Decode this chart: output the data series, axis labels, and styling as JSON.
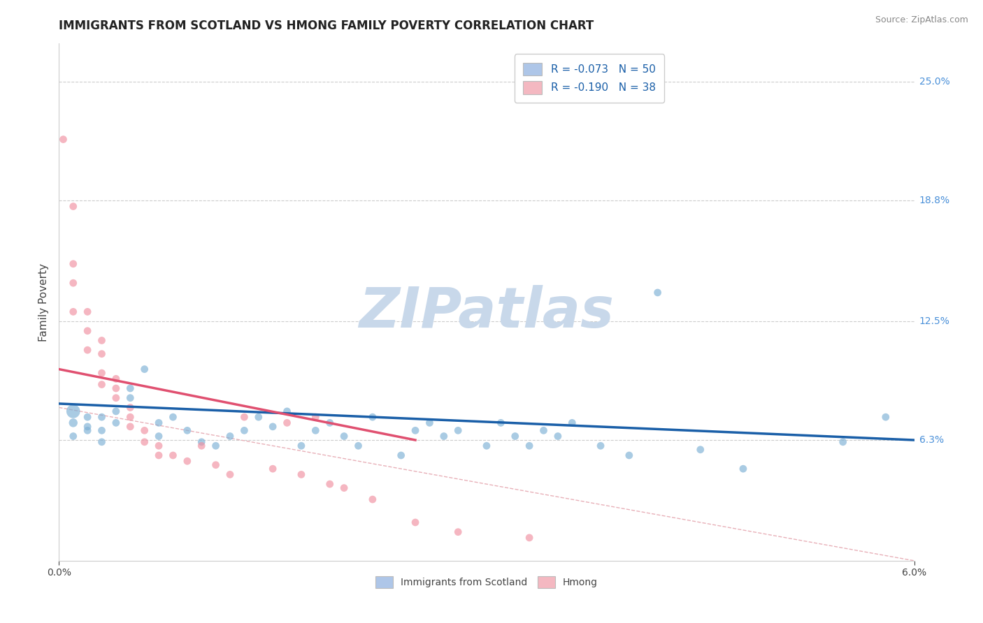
{
  "title": "IMMIGRANTS FROM SCOTLAND VS HMONG FAMILY POVERTY CORRELATION CHART",
  "source": "Source: ZipAtlas.com",
  "ylabel": "Family Poverty",
  "ylabel_right_labels": [
    "25.0%",
    "18.8%",
    "12.5%",
    "6.3%"
  ],
  "xlim": [
    0.0,
    0.06
  ],
  "ylim": [
    0.0,
    0.27
  ],
  "yticks_right": [
    0.25,
    0.188,
    0.125,
    0.063
  ],
  "xticks": [
    0.0,
    0.06
  ],
  "legend_entries": [
    {
      "label": "R = -0.073   N = 50",
      "color": "#aec6e8"
    },
    {
      "label": "R = -0.190   N = 38",
      "color": "#f4b8c1"
    }
  ],
  "legend_bottom_labels": [
    "Immigrants from Scotland",
    "Hmong"
  ],
  "scatter_blue": {
    "x": [
      0.001,
      0.001,
      0.001,
      0.002,
      0.002,
      0.002,
      0.003,
      0.003,
      0.003,
      0.004,
      0.004,
      0.005,
      0.005,
      0.006,
      0.007,
      0.007,
      0.008,
      0.009,
      0.01,
      0.011,
      0.012,
      0.013,
      0.014,
      0.015,
      0.016,
      0.017,
      0.018,
      0.019,
      0.02,
      0.021,
      0.022,
      0.024,
      0.025,
      0.026,
      0.027,
      0.028,
      0.03,
      0.031,
      0.032,
      0.033,
      0.034,
      0.035,
      0.036,
      0.038,
      0.04,
      0.042,
      0.045,
      0.048,
      0.055,
      0.058
    ],
    "y": [
      0.078,
      0.072,
      0.065,
      0.07,
      0.075,
      0.068,
      0.075,
      0.068,
      0.062,
      0.072,
      0.078,
      0.09,
      0.085,
      0.1,
      0.065,
      0.072,
      0.075,
      0.068,
      0.062,
      0.06,
      0.065,
      0.068,
      0.075,
      0.07,
      0.078,
      0.06,
      0.068,
      0.072,
      0.065,
      0.06,
      0.075,
      0.055,
      0.068,
      0.072,
      0.065,
      0.068,
      0.06,
      0.072,
      0.065,
      0.06,
      0.068,
      0.065,
      0.072,
      0.06,
      0.055,
      0.14,
      0.058,
      0.048,
      0.062,
      0.075
    ],
    "sizes": [
      200,
      80,
      60,
      60,
      60,
      60,
      60,
      60,
      60,
      60,
      60,
      60,
      60,
      60,
      60,
      60,
      60,
      60,
      60,
      60,
      60,
      60,
      60,
      60,
      60,
      60,
      60,
      60,
      60,
      60,
      60,
      60,
      60,
      60,
      60,
      60,
      60,
      60,
      60,
      60,
      60,
      60,
      60,
      60,
      60,
      60,
      60,
      60,
      60,
      60
    ]
  },
  "scatter_pink": {
    "x": [
      0.0003,
      0.001,
      0.001,
      0.001,
      0.001,
      0.002,
      0.002,
      0.002,
      0.003,
      0.003,
      0.003,
      0.003,
      0.004,
      0.004,
      0.004,
      0.005,
      0.005,
      0.005,
      0.006,
      0.006,
      0.007,
      0.007,
      0.008,
      0.009,
      0.01,
      0.011,
      0.012,
      0.013,
      0.015,
      0.016,
      0.017,
      0.018,
      0.019,
      0.02,
      0.022,
      0.025,
      0.028,
      0.033
    ],
    "y": [
      0.22,
      0.185,
      0.155,
      0.145,
      0.13,
      0.13,
      0.12,
      0.11,
      0.115,
      0.108,
      0.098,
      0.092,
      0.09,
      0.085,
      0.095,
      0.08,
      0.075,
      0.07,
      0.068,
      0.062,
      0.06,
      0.055,
      0.055,
      0.052,
      0.06,
      0.05,
      0.045,
      0.075,
      0.048,
      0.072,
      0.045,
      0.075,
      0.04,
      0.038,
      0.032,
      0.02,
      0.015,
      0.012
    ],
    "sizes": [
      60,
      60,
      60,
      60,
      60,
      60,
      60,
      60,
      60,
      60,
      60,
      60,
      60,
      60,
      60,
      60,
      60,
      60,
      60,
      60,
      60,
      60,
      60,
      60,
      60,
      60,
      60,
      60,
      60,
      60,
      60,
      60,
      60,
      60,
      60,
      60,
      60,
      60
    ]
  },
  "blue_color": "#7bafd4",
  "pink_color": "#f090a0",
  "blue_line_color": "#1a5fa8",
  "pink_line_color": "#e05070",
  "blue_legend_color": "#aec6e8",
  "pink_legend_color": "#f4b8c1",
  "watermark": "ZIPatlas",
  "watermark_color": "#c8d8ea",
  "grid_color": "#cccccc",
  "right_label_color": "#4a90d9",
  "background_color": "#ffffff",
  "blue_line_x": [
    0.0,
    0.06
  ],
  "blue_line_y": [
    0.082,
    0.063
  ],
  "pink_line_x": [
    0.0,
    0.025
  ],
  "pink_line_y": [
    0.1,
    0.063
  ],
  "dash_line_x": [
    0.0,
    0.06
  ],
  "dash_line_y": [
    0.08,
    0.0
  ]
}
